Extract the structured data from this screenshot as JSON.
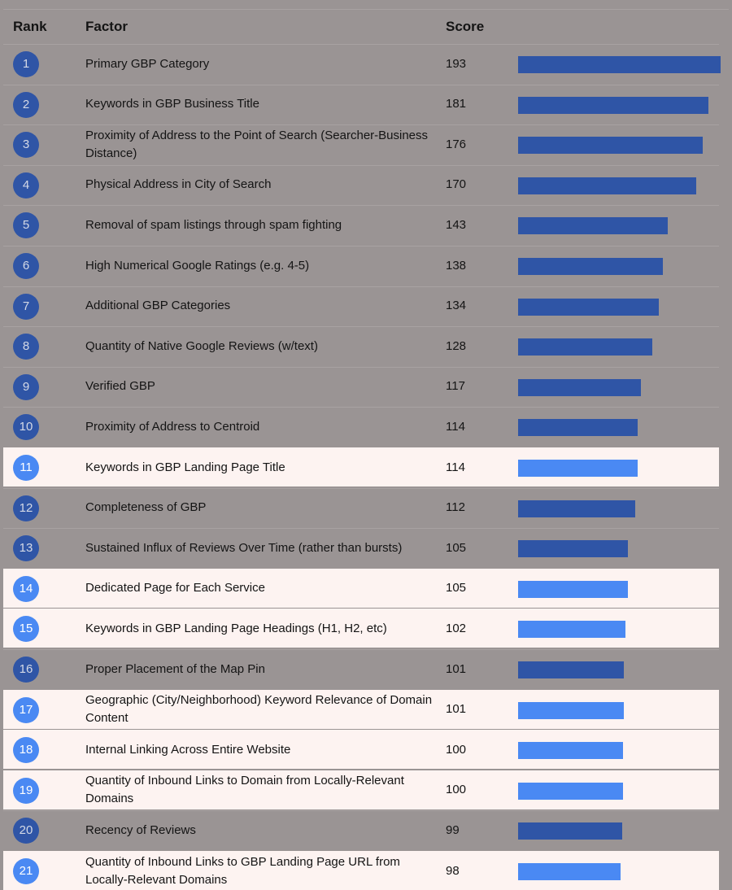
{
  "headers": {
    "rank": "Rank",
    "factor": "Factor",
    "score": "Score"
  },
  "colors": {
    "background": "#9a9494",
    "bar_primary": "#2f55a6",
    "bar_highlight": "#4a89f3",
    "row_highlight": "#fdf3f1"
  },
  "chart_data": {
    "type": "bar",
    "orientation": "horizontal",
    "xlim": [
      0,
      193
    ],
    "grid": false,
    "categories": [
      "Primary GBP Category",
      "Keywords in GBP Business Title",
      "Proximity of Address to the Point of Search (Searcher-Business Distance)",
      "Physical Address in City of Search",
      "Removal of spam listings through spam fighting",
      "High Numerical Google Ratings (e.g. 4-5)",
      "Additional GBP Categories",
      "Quantity of Native Google Reviews (w/text)",
      "Verified GBP",
      "Proximity of Address to Centroid",
      "Keywords in GBP Landing Page Title",
      "Completeness of GBP",
      "Sustained Influx of Reviews Over Time (rather than bursts)",
      "Dedicated Page for Each Service",
      "Keywords in GBP Landing Page Headings (H1, H2, etc)",
      "Proper Placement of the Map Pin",
      "Geographic (City/Neighborhood) Keyword Relevance of Domain Content",
      "Internal Linking Across Entire Website",
      "Quantity of Inbound Links to Domain from Locally-Relevant Domains",
      "Recency of Reviews",
      "Quantity of Inbound Links to GBP Landing Page URL from Locally-Relevant Domains"
    ],
    "ranks": [
      "1",
      "2",
      "3",
      "4",
      "5",
      "6",
      "7",
      "8",
      "9",
      "10",
      "11",
      "12",
      "13",
      "14",
      "15",
      "16",
      "17",
      "18",
      "19",
      "20",
      "21"
    ],
    "values": [
      193,
      181,
      176,
      170,
      143,
      138,
      134,
      128,
      117,
      114,
      114,
      112,
      105,
      105,
      102,
      101,
      101,
      100,
      100,
      99,
      98
    ],
    "highlighted": [
      false,
      false,
      false,
      false,
      false,
      false,
      false,
      false,
      false,
      false,
      true,
      false,
      false,
      true,
      true,
      false,
      true,
      true,
      true,
      false,
      true
    ]
  }
}
